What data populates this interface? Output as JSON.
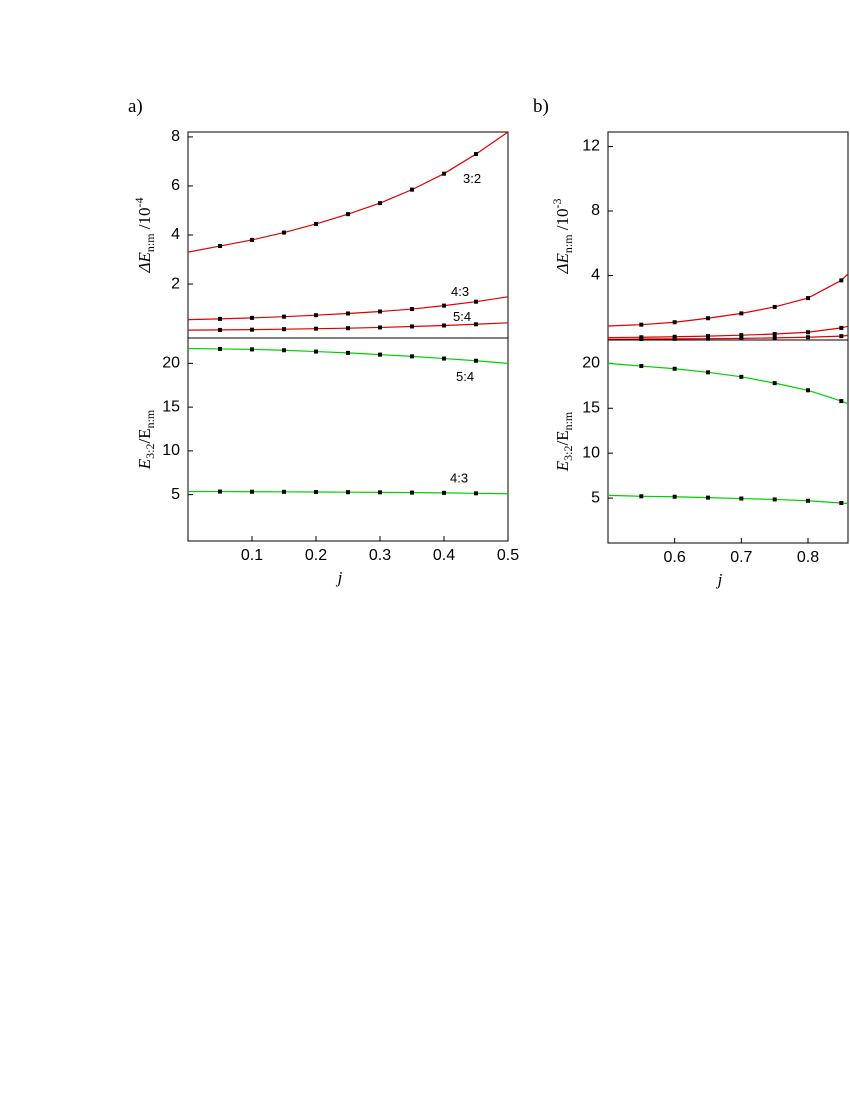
{
  "chart_data": [
    {
      "type": "line",
      "panel_label": "a)",
      "y_label": {
        "main": "ΔE",
        "sub": "n:m",
        "rest": " /10",
        "sup": "-4"
      },
      "x": [
        0,
        0.05,
        0.1,
        0.15,
        0.2,
        0.25,
        0.3,
        0.35,
        0.4,
        0.45,
        0.5
      ],
      "xlim": [
        0,
        0.5
      ],
      "ylim": [
        -0.2,
        8.2
      ],
      "yticks": [
        2,
        4,
        6,
        8
      ],
      "series": [
        {
          "name": "3:2",
          "color": "#e00000",
          "values": [
            3.3,
            3.55,
            3.8,
            4.1,
            4.45,
            4.85,
            5.3,
            5.85,
            6.5,
            7.3,
            8.2
          ]
        },
        {
          "name": "4:3",
          "color": "#e00000",
          "values": [
            0.55,
            0.58,
            0.62,
            0.67,
            0.73,
            0.8,
            0.88,
            0.98,
            1.12,
            1.28,
            1.48
          ]
        },
        {
          "name": "5:4",
          "color": "#e00000",
          "values": [
            0.12,
            0.13,
            0.14,
            0.16,
            0.18,
            0.2,
            0.23,
            0.27,
            0.31,
            0.36,
            0.42
          ]
        }
      ]
    },
    {
      "type": "line",
      "y_label": {
        "main": "E",
        "sub": "3:2",
        "rest": "/E",
        "sub2": "n:m"
      },
      "x_label": "j",
      "x": [
        0,
        0.05,
        0.1,
        0.15,
        0.2,
        0.25,
        0.3,
        0.35,
        0.4,
        0.45,
        0.5
      ],
      "xlim": [
        0,
        0.5
      ],
      "ylim": [
        -0.3,
        22.9
      ],
      "yticks": [
        5,
        10,
        15,
        20
      ],
      "xticks": [
        0.1,
        0.2,
        0.3,
        0.4,
        0.5
      ],
      "series": [
        {
          "name": "5:4",
          "color": "#00d000",
          "values": [
            21.7,
            21.65,
            21.6,
            21.5,
            21.35,
            21.2,
            21.0,
            20.8,
            20.55,
            20.3,
            20.0
          ]
        },
        {
          "name": "4:3",
          "color": "#00d000",
          "values": [
            5.35,
            5.35,
            5.33,
            5.32,
            5.3,
            5.28,
            5.26,
            5.23,
            5.2,
            5.15,
            5.1
          ]
        }
      ]
    },
    {
      "type": "line",
      "panel_label": "b)",
      "y_label": {
        "main": "ΔE",
        "sub": "n:m",
        "rest": " /10",
        "sup": "-3"
      },
      "x": [
        0.5,
        0.55,
        0.6,
        0.65,
        0.7,
        0.75,
        0.8,
        0.85,
        0.86
      ],
      "xlim": [
        0.5,
        0.86
      ],
      "ylim": [
        0,
        12.9
      ],
      "yticks": [
        4,
        8,
        12
      ],
      "series": [
        {
          "color": "#e00000",
          "values": [
            0.87,
            0.95,
            1.1,
            1.35,
            1.65,
            2.05,
            2.6,
            3.7,
            4.1
          ]
        },
        {
          "color": "#e00000",
          "values": [
            0.15,
            0.17,
            0.2,
            0.24,
            0.3,
            0.37,
            0.48,
            0.75,
            0.85
          ]
        },
        {
          "color": "#e00000",
          "values": [
            0.05,
            0.06,
            0.07,
            0.08,
            0.1,
            0.13,
            0.17,
            0.24,
            0.28
          ]
        }
      ]
    },
    {
      "type": "line",
      "y_label": {
        "main": "E",
        "sub": "3:2",
        "rest": "/E",
        "sub2": "n:m"
      },
      "x_label": "j",
      "x": [
        0.5,
        0.55,
        0.6,
        0.65,
        0.7,
        0.75,
        0.8,
        0.85,
        0.86
      ],
      "xlim": [
        0.5,
        0.86
      ],
      "ylim": [
        0,
        22.6
      ],
      "yticks": [
        5,
        10,
        15,
        20
      ],
      "xticks": [
        0.6,
        0.7,
        0.8
      ],
      "series": [
        {
          "color": "#00d000",
          "values": [
            20.0,
            19.7,
            19.4,
            19.0,
            18.5,
            17.8,
            17.0,
            15.8,
            15.5
          ]
        },
        {
          "color": "#00d000",
          "values": [
            5.3,
            5.2,
            5.15,
            5.05,
            4.95,
            4.85,
            4.7,
            4.45,
            4.4
          ]
        }
      ]
    }
  ]
}
